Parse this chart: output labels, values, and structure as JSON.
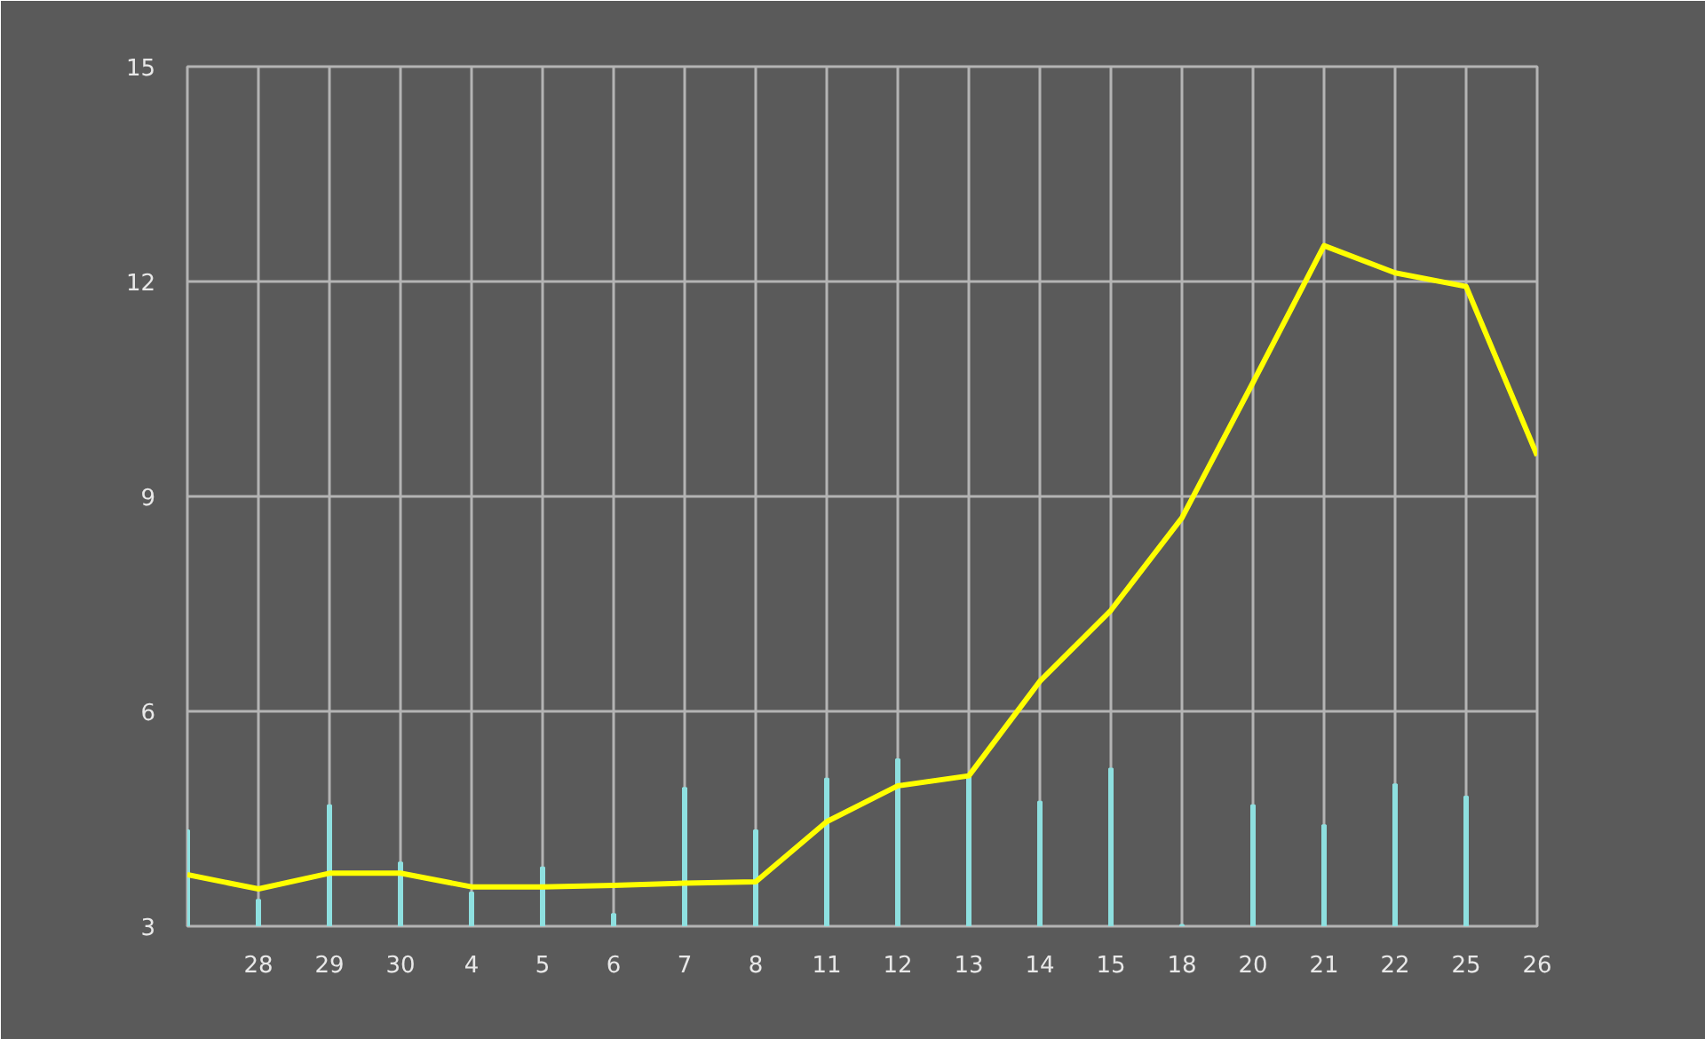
{
  "chart_data": {
    "type": "line",
    "categories": [
      null,
      "28",
      "29",
      "30",
      "4",
      "5",
      "6",
      "7",
      "8",
      "11",
      "12",
      "13",
      "14",
      "15",
      "18",
      "20",
      "21",
      "22",
      "25",
      "26"
    ],
    "series": [
      {
        "type": "bar",
        "color": "#8ee0e0",
        "base": [
          3,
          3,
          3,
          3,
          3,
          3,
          3,
          3,
          3,
          3,
          3,
          3,
          3,
          3,
          3,
          3,
          3,
          3,
          3,
          null
        ],
        "values": [
          1.34,
          0.37,
          1.69,
          0.89,
          0.47,
          0.82,
          0.17,
          1.93,
          1.34,
          2.06,
          2.33,
          2.1,
          1.74,
          2.2,
          0.02,
          1.69,
          1.41,
          1.98,
          1.81,
          null
        ]
      },
      {
        "color": "#ffff00",
        "values": [
          3.72,
          3.52,
          3.74,
          3.74,
          3.55,
          3.55,
          3.57,
          3.6,
          3.62,
          4.46,
          4.96,
          5.1,
          6.42,
          7.41,
          8.7,
          10.59,
          12.5,
          12.12,
          11.93,
          9.57
        ]
      }
    ],
    "ylim": [
      3,
      15
    ],
    "yticks": [
      3,
      6,
      9,
      12,
      15
    ],
    "grid": true,
    "marker": "none",
    "line_style": "solid"
  }
}
